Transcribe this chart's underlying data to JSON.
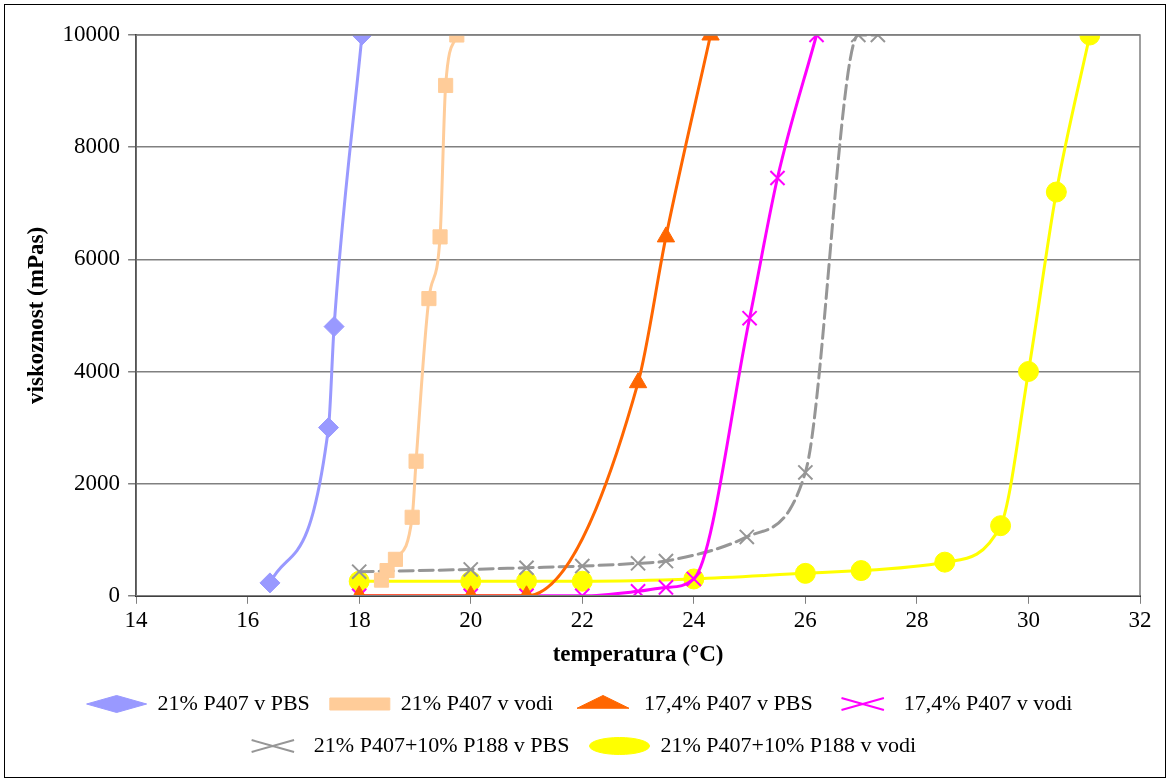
{
  "chart_data": {
    "type": "line",
    "xlabel": "temperatura (°C)",
    "ylabel": "viskoznost (mPas)",
    "xlim": [
      14,
      32
    ],
    "xticks": [
      14,
      16,
      18,
      20,
      22,
      24,
      26,
      28,
      30,
      32
    ],
    "ylim": [
      0,
      10000
    ],
    "yticks": [
      0,
      2000,
      4000,
      6000,
      8000,
      10000
    ],
    "grid": "y",
    "legend": "bottom",
    "series": [
      {
        "name": "21% P407 v PBS",
        "color": "#9999ff",
        "marker": "diamond",
        "line_style": "solid",
        "x": [
          16.4,
          17.45,
          17.55,
          18.05
        ],
        "values": [
          230,
          3000,
          4800,
          10000
        ]
      },
      {
        "name": "21% P407 v vodi",
        "color": "#ffcc99",
        "marker": "square",
        "line_style": "solid",
        "x": [
          18.4,
          18.5,
          18.65,
          18.95,
          19.02,
          19.25,
          19.45,
          19.55,
          19.75
        ],
        "values": [
          280,
          450,
          650,
          1400,
          2400,
          5300,
          6400,
          9100,
          10000
        ]
      },
      {
        "name": "17,4% P407 v PBS",
        "color": "#ff6600",
        "marker": "triangle",
        "line_style": "solid",
        "x": [
          18,
          20,
          21,
          23,
          23.5,
          24.3
        ],
        "values": [
          0,
          0,
          0,
          3800,
          6400,
          10000
        ]
      },
      {
        "name": "17,4% P407 v vodi",
        "color": "#ff00ff",
        "marker": "cross",
        "line_style": "solid",
        "x": [
          18,
          20,
          21,
          22,
          23,
          23.5,
          24,
          25,
          25.5,
          26.2
        ],
        "values": [
          0,
          0,
          0,
          0,
          80,
          150,
          300,
          4950,
          7450,
          10000
        ]
      },
      {
        "name": "21% P407+10% P188 v PBS",
        "color": "#969696",
        "marker": "cross",
        "line_style": "dashed",
        "x": [
          18,
          20,
          21,
          22,
          23,
          23.5,
          24.95,
          26,
          26.95,
          27.3
        ],
        "values": [
          430,
          470,
          500,
          530,
          580,
          620,
          1050,
          2200,
          10000,
          10000
        ]
      },
      {
        "name": "21% P407+10% P188 v vodi",
        "color": "#ffff00",
        "marker": "circle",
        "line_style": "solid",
        "x": [
          18,
          20,
          21,
          22,
          24,
          26,
          27,
          28.5,
          29.5,
          30,
          30.5,
          31.1
        ],
        "values": [
          260,
          260,
          260,
          260,
          300,
          400,
          450,
          600,
          1250,
          4000,
          7200,
          10000
        ]
      }
    ]
  }
}
